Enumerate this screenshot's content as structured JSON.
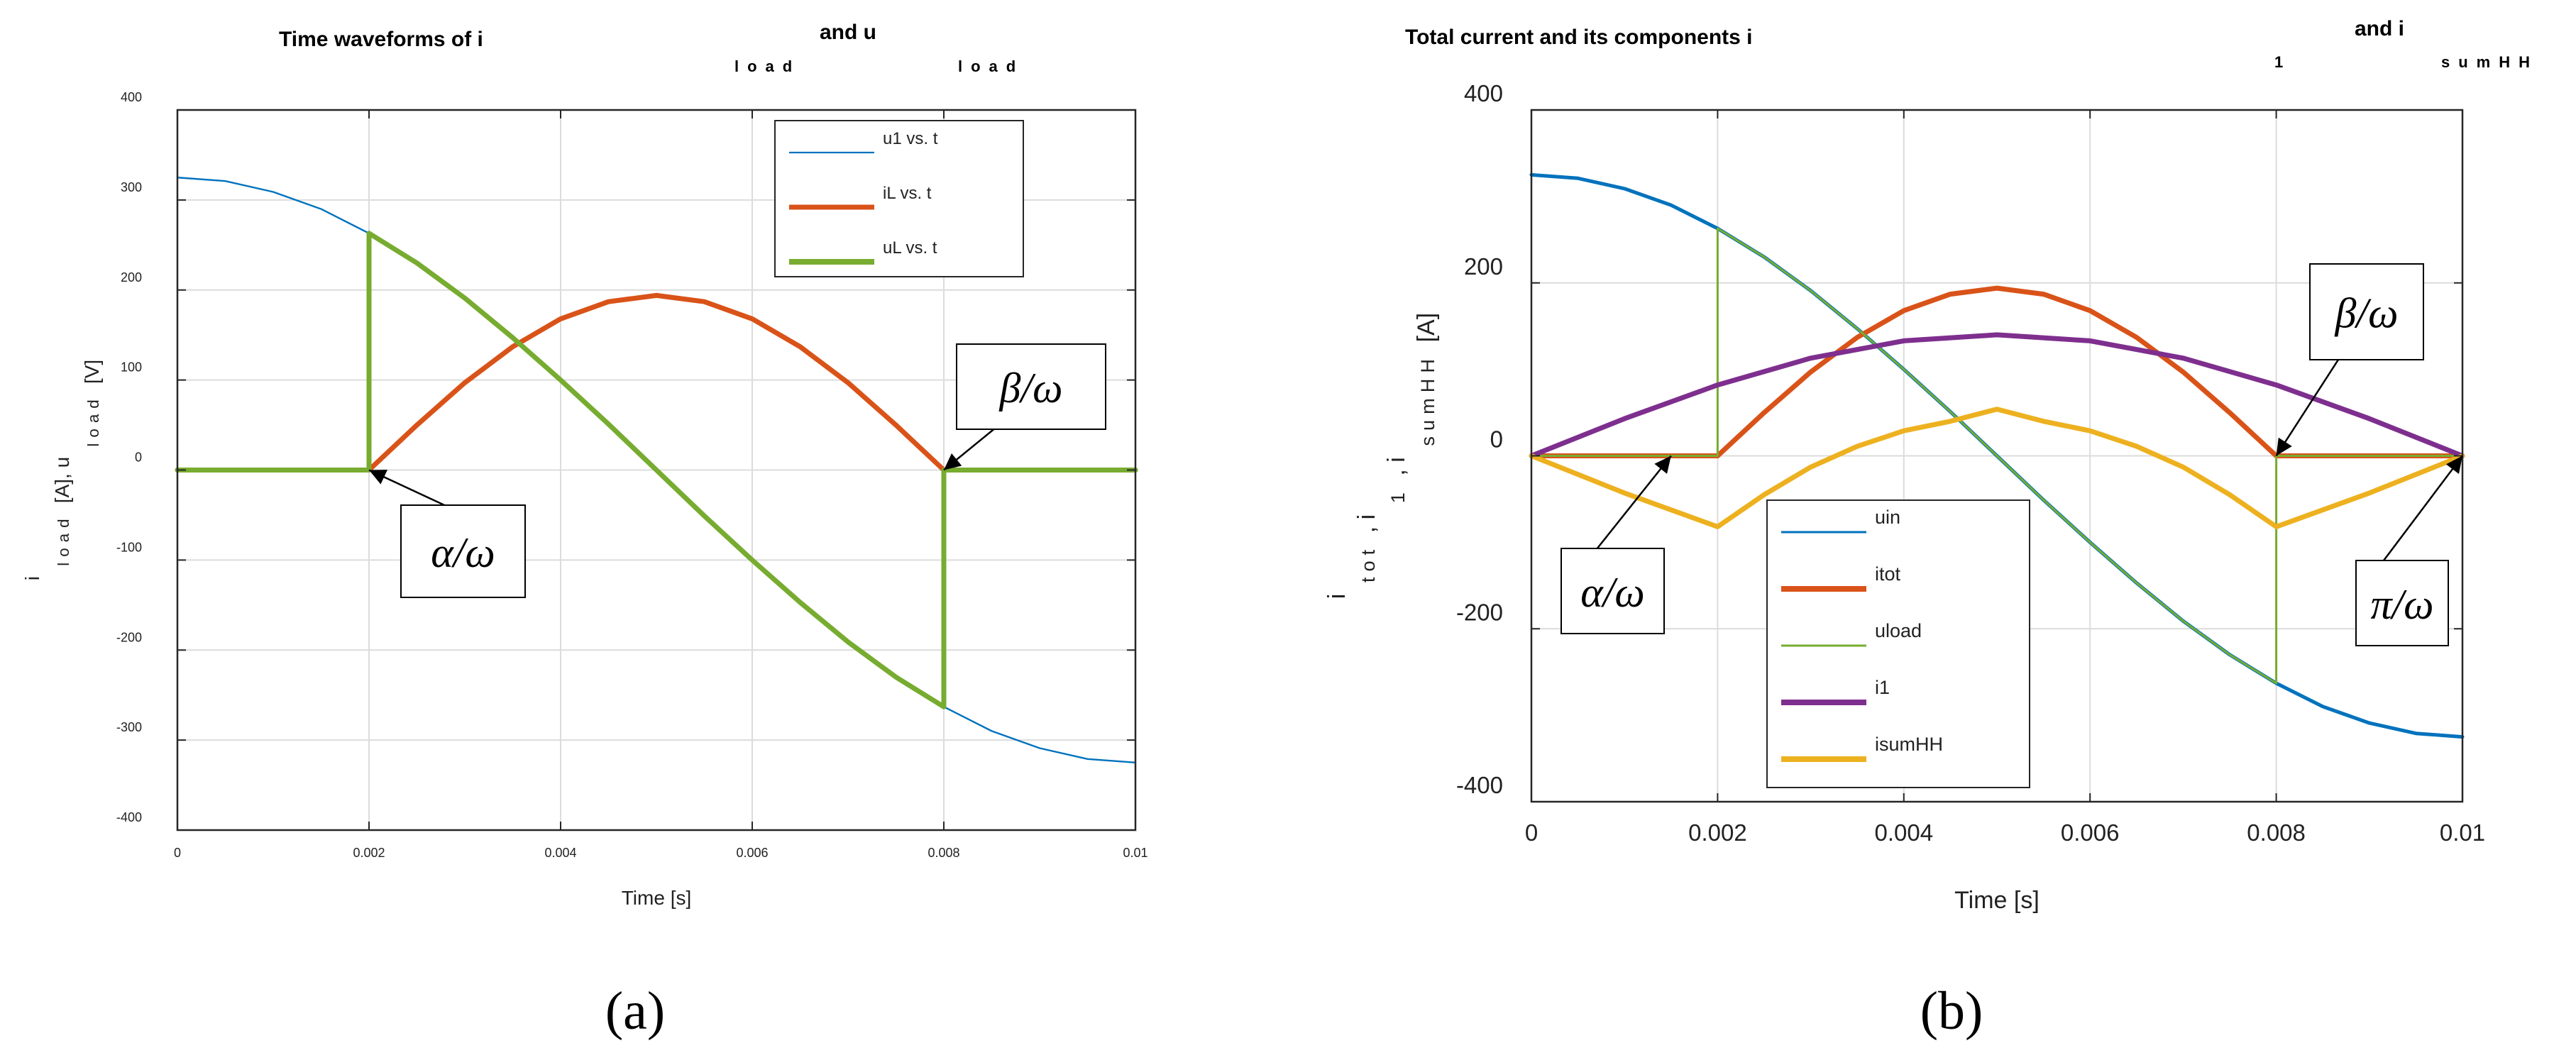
{
  "panels": [
    {
      "id": "a",
      "panel_label": "(a)",
      "title_segments": [
        {
          "text": "Time waveforms of i",
          "sub": "load"
        },
        {
          "text": "and u",
          "sub": "load"
        }
      ],
      "xlabel": "Time [s]",
      "ylabel_segments": [
        {
          "text": "i",
          "sub": "load"
        },
        {
          "text": "[A], u",
          "sub": "load"
        },
        {
          "text": "[V]",
          "sub": ""
        }
      ],
      "annotations": [
        {
          "text": "α/ω",
          "x": 0.002,
          "y": 0
        },
        {
          "text": "β/ω",
          "x": 0.008,
          "y": 0
        }
      ]
    },
    {
      "id": "b",
      "panel_label": "(b)",
      "title_segments": [
        {
          "text": "Total current and its components i",
          "sub": "1"
        },
        {
          "text": "and i",
          "sub": "sumHH"
        }
      ],
      "xlabel": "Time [s]",
      "ylabel_segments": [
        {
          "text": "i",
          "sub": "tot"
        },
        {
          "text": ", i",
          "sub": "1"
        },
        {
          "text": ", i",
          "sub": "sumHH"
        },
        {
          "text": "[A]",
          "sub": ""
        }
      ],
      "annotations": [
        {
          "text": "α/ω",
          "x": 0.0015,
          "y": 0
        },
        {
          "text": "β/ω",
          "x": 0.008,
          "y": 0
        },
        {
          "text": "π/ω",
          "x": 0.01,
          "y": 0
        }
      ]
    }
  ],
  "chart_data": [
    {
      "type": "line",
      "panel": "a",
      "xlim": [
        0,
        0.01
      ],
      "ylim": [
        -400,
        400
      ],
      "xticks": [
        0,
        0.002,
        0.004,
        0.006,
        0.008,
        0.01
      ],
      "xtick_labels": [
        "0",
        "0.002",
        "0.004",
        "0.006",
        "0.008",
        "0.01"
      ],
      "yticks": [
        -400,
        -300,
        -200,
        -100,
        0,
        100,
        200,
        300,
        400
      ],
      "ytick_labels": [
        "-400",
        "-300",
        "-200",
        "-100",
        "0",
        "100",
        "200",
        "300",
        "400"
      ],
      "grid": true,
      "legend_position": "top-right",
      "series": [
        {
          "name": "u1 vs. t",
          "color": "#0072BD",
          "x": [
            0,
            0.0005,
            0.001,
            0.0015,
            0.002,
            0.0025,
            0.003,
            0.0035,
            0.004,
            0.0045,
            0.005,
            0.0055,
            0.006,
            0.0065,
            0.007,
            0.0075,
            0.008,
            0.0085,
            0.009,
            0.0095,
            0.01
          ],
          "y": [
            325,
            321,
            309,
            290,
            263,
            230,
            191,
            147,
            100,
            51,
            0,
            -51,
            -100,
            -147,
            -191,
            -230,
            -263,
            -290,
            -309,
            -321,
            -325
          ]
        },
        {
          "name": "iL vs. t",
          "color": "#D95319",
          "x": [
            0,
            0.002,
            0.0025,
            0.003,
            0.0035,
            0.004,
            0.0045,
            0.005,
            0.0055,
            0.006,
            0.0065,
            0.007,
            0.0075,
            0.008,
            0.0085,
            0.01
          ],
          "y": [
            0,
            0,
            50,
            97,
            137,
            168,
            187,
            194,
            187,
            168,
            137,
            97,
            50,
            0,
            0,
            0
          ]
        },
        {
          "name": "uL vs. t",
          "color": "#77AC30",
          "x": [
            0,
            0.002,
            0.002,
            0.0025,
            0.003,
            0.0035,
            0.004,
            0.0045,
            0.005,
            0.0055,
            0.006,
            0.0065,
            0.007,
            0.0075,
            0.008,
            0.008,
            0.0085,
            0.01
          ],
          "y": [
            0,
            0,
            263,
            230,
            191,
            147,
            100,
            51,
            0,
            -51,
            -100,
            -147,
            -191,
            -230,
            -263,
            0,
            0,
            0
          ]
        }
      ]
    },
    {
      "type": "line",
      "panel": "b",
      "xlim": [
        0,
        0.01
      ],
      "ylim": [
        -400,
        400
      ],
      "xticks": [
        0,
        0.002,
        0.004,
        0.006,
        0.008,
        0.01
      ],
      "xtick_labels": [
        "0",
        "0.002",
        "0.004",
        "0.006",
        "0.008",
        "0.01"
      ],
      "yticks": [
        -400,
        -200,
        0,
        200,
        400
      ],
      "ytick_labels": [
        "-400",
        "-200",
        "0",
        "200",
        "400"
      ],
      "grid": true,
      "legend_position": "bottom-center",
      "series": [
        {
          "name": "uin",
          "color": "#0072BD",
          "x": [
            0,
            0.0005,
            0.001,
            0.0015,
            0.002,
            0.0025,
            0.003,
            0.0035,
            0.004,
            0.0045,
            0.005,
            0.0055,
            0.006,
            0.0065,
            0.007,
            0.0075,
            0.008,
            0.0085,
            0.009,
            0.0095,
            0.01
          ],
          "y": [
            325,
            321,
            309,
            290,
            263,
            230,
            191,
            147,
            100,
            51,
            0,
            -51,
            -100,
            -147,
            -191,
            -230,
            -263,
            -290,
            -309,
            -321,
            -325
          ]
        },
        {
          "name": "itot",
          "color": "#D95319",
          "x": [
            0,
            0.002,
            0.0025,
            0.003,
            0.0035,
            0.004,
            0.0045,
            0.005,
            0.0055,
            0.006,
            0.0065,
            0.007,
            0.0075,
            0.008,
            0.0085,
            0.01
          ],
          "y": [
            0,
            0,
            50,
            97,
            137,
            168,
            187,
            194,
            187,
            168,
            137,
            97,
            50,
            0,
            0,
            0
          ]
        },
        {
          "name": "uload",
          "color": "#77AC30",
          "x": [
            0,
            0.002,
            0.002,
            0.0025,
            0.003,
            0.0035,
            0.004,
            0.0045,
            0.005,
            0.0055,
            0.006,
            0.0065,
            0.007,
            0.0075,
            0.008,
            0.008,
            0.0085,
            0.01
          ],
          "y": [
            0,
            0,
            263,
            230,
            191,
            147,
            100,
            51,
            0,
            -51,
            -100,
            -147,
            -191,
            -230,
            -263,
            0,
            0,
            0
          ]
        },
        {
          "name": "i1",
          "color": "#7E2F8E",
          "x": [
            0,
            0.001,
            0.002,
            0.003,
            0.004,
            0.005,
            0.006,
            0.007,
            0.008,
            0.009,
            0.01
          ],
          "y": [
            0,
            43,
            82,
            113,
            133,
            140,
            133,
            113,
            82,
            43,
            0
          ]
        },
        {
          "name": "isumHH",
          "color": "#EDB120",
          "x": [
            0,
            0.001,
            0.002,
            0.0025,
            0.003,
            0.0035,
            0.004,
            0.0045,
            0.005,
            0.0055,
            0.006,
            0.0065,
            0.007,
            0.0075,
            0.008,
            0.009,
            0.01
          ],
          "y": [
            0,
            -43,
            -82,
            -45,
            -13,
            11,
            29,
            40,
            54,
            40,
            29,
            11,
            -13,
            -45,
            -82,
            -43,
            0
          ]
        }
      ]
    }
  ]
}
